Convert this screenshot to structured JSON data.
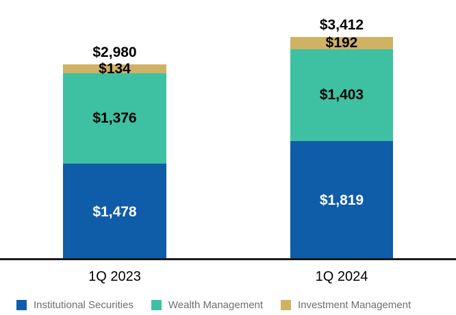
{
  "chart_data": {
    "type": "bar",
    "stacked": true,
    "title": "",
    "categories": [
      "1Q 2023",
      "1Q 2024"
    ],
    "series": [
      {
        "name": "Institutional Securities",
        "color": "#0f5ca8",
        "values": [
          1478,
          1819
        ],
        "labels": [
          "$1,478",
          "$1,819"
        ]
      },
      {
        "name": "Wealth Management",
        "color": "#3ec1a3",
        "values": [
          1376,
          1403
        ],
        "labels": [
          "$1,376",
          "$1,403"
        ]
      },
      {
        "name": "Investment Management",
        "color": "#d0b264",
        "values": [
          134,
          192
        ],
        "labels": [
          "$134",
          "$192"
        ]
      }
    ],
    "totals": [
      2980,
      3412
    ],
    "total_labels": [
      "$2,980",
      "$3,412"
    ],
    "xlabel": "",
    "ylabel": "",
    "grid": false,
    "legend_position": "bottom",
    "axis_line_color": "#1a1a1a",
    "label_color_on_dark": "#ffffff",
    "label_color_on_light": "#000000"
  }
}
